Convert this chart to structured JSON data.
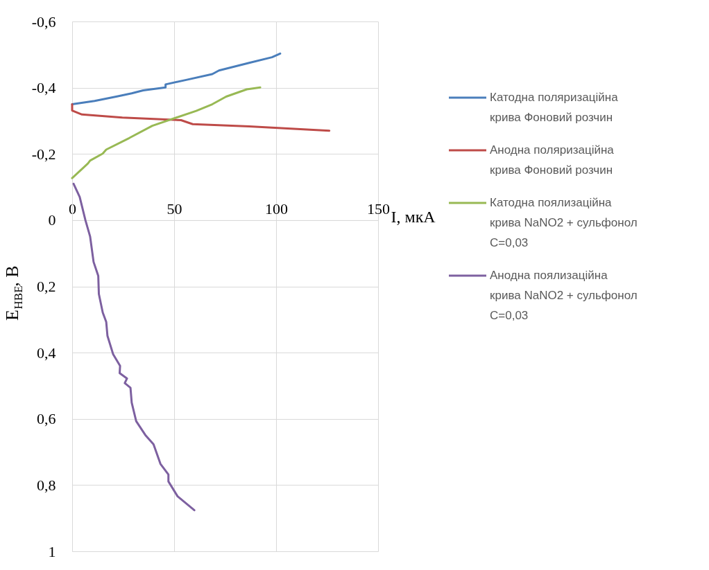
{
  "chart_data": {
    "type": "line",
    "xlabel": "I, мкА",
    "ylabel": "E$_{НВЕ}$, В",
    "xlim": [
      0,
      150
    ],
    "xticks": [
      0,
      50,
      100,
      150
    ],
    "ylim": [
      1,
      -0.6
    ],
    "yticks": [
      {
        "value": -0.6,
        "label": "-0,6"
      },
      {
        "value": -0.4,
        "label": "-0,4"
      },
      {
        "value": -0.2,
        "label": "-0,2"
      },
      0,
      {
        "value": 0.2,
        "label": "0,2"
      },
      {
        "value": 0.4,
        "label": "0,4"
      },
      {
        "value": 0.6,
        "label": "0,6"
      },
      {
        "value": 0.8,
        "label": "0,8"
      },
      1
    ],
    "grid": true,
    "legend": "right",
    "line_style": "solid",
    "marker": "none",
    "series": [
      {
        "name": "Катодна поляризаційна крива Фоновий розчин",
        "color": "#4a7ebb",
        "x": [
          0,
          11,
          22.4,
          29.2,
          34.8,
          45.8,
          45.8,
          56.3,
          68.7,
          72,
          86.8,
          98,
          102
        ],
        "values": [
          -0.35,
          -0.36,
          -0.374,
          -0.383,
          -0.392,
          -0.401,
          -0.41,
          -0.424,
          -0.441,
          -0.452,
          -0.475,
          -0.492,
          -0.503
        ]
      },
      {
        "name": "Анодна поляризаційна крива Фоновий розчин",
        "color": "#be4b48",
        "x": [
          0,
          0,
          4.8,
          24.6,
          53.4,
          59.1,
          86.8,
          126.1
        ],
        "values": [
          -0.35,
          -0.331,
          -0.319,
          -0.31,
          -0.302,
          -0.29,
          -0.283,
          -0.27
        ]
      },
      {
        "name": "Катодна поялизаційна крива NaNO2 + сульфонол C=0,03",
        "color": "#98b954",
        "x": [
          0,
          7.7,
          8.8,
          15,
          16.7,
          28,
          39.3,
          60.8,
          68.7,
          75.5,
          85.6,
          92.2
        ],
        "values": [
          -0.127,
          -0.171,
          -0.18,
          -0.201,
          -0.213,
          -0.248,
          -0.285,
          -0.33,
          -0.35,
          -0.373,
          -0.395,
          -0.401
        ]
      },
      {
        "name": "Анодна поялизаційна крива NaNO2 + сульфонол C=0,03",
        "color": "#7d60a0",
        "x": [
          0.7,
          3.7,
          6.5,
          8.8,
          10.5,
          12.8,
          13.1,
          15,
          16.7,
          17.3,
          20.1,
          23.5,
          23.3,
          26.9,
          25.8,
          28.6,
          29.2,
          31.4,
          35.9,
          39.9,
          43.3,
          47.2,
          47.2,
          51.7,
          59.9
        ],
        "values": [
          -0.11,
          -0.07,
          0,
          0.049,
          0.126,
          0.168,
          0.223,
          0.279,
          0.307,
          0.349,
          0.405,
          0.44,
          0.462,
          0.478,
          0.492,
          0.506,
          0.551,
          0.607,
          0.649,
          0.677,
          0.736,
          0.768,
          0.789,
          0.834,
          0.876
        ]
      }
    ]
  }
}
